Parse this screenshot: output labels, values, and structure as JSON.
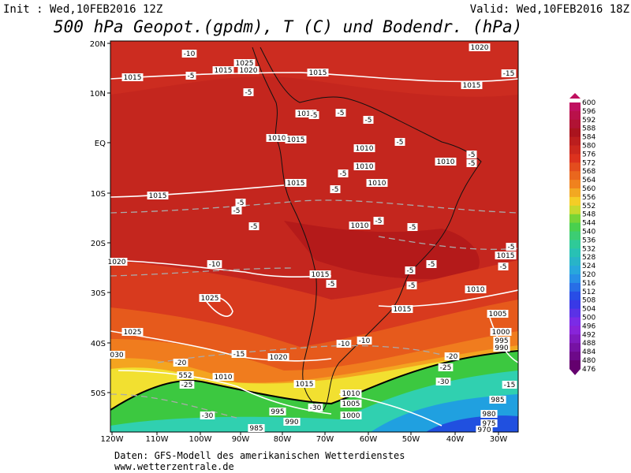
{
  "header": {
    "init": "Init : Wed,10FEB2016 12Z",
    "valid": "Valid: Wed,10FEB2016 18Z",
    "title": "500 hPa Geopot.(gpdm), T (C) und Bodendr. (hPa)"
  },
  "map": {
    "lat_labels": [
      "20N",
      "10N",
      "EQ",
      "10S",
      "20S",
      "30S",
      "40S",
      "50S"
    ],
    "lon_labels": [
      "120W",
      "110W",
      "100W",
      "90W",
      "80W",
      "70W",
      "60W",
      "50W",
      "40W",
      "30W"
    ],
    "contour_labels": [
      "-10",
      "1025",
      "1015",
      "1020",
      "-5",
      "1015",
      "1015",
      "-5",
      "1020",
      "-15",
      "1015",
      "1010",
      "-5",
      "-5",
      "-5",
      "1010",
      "1015",
      "1010",
      "-5",
      "1010",
      "1010",
      "-5",
      "-5",
      "1015",
      "-5",
      "-5",
      "1010",
      "1015",
      "-5",
      "-5",
      "-5",
      "-5",
      "1010",
      "-5",
      "-5",
      "1015",
      "-5",
      "1020",
      "-10",
      "-5",
      "-5",
      "1015",
      "-5",
      "-5",
      "1010",
      "1025",
      "1015",
      "1005",
      "1025",
      "1000",
      "995",
      "990",
      "-10",
      "-10",
      "030",
      "1020",
      "-15",
      "-20",
      "-20",
      "-25",
      "552",
      "1010",
      "-25",
      "-30",
      "1015",
      "-15",
      "1010",
      "1005",
      "985",
      "-30",
      "995",
      "1000",
      "980",
      "-30",
      "990",
      "975",
      "985",
      "970"
    ]
  },
  "colorbar": {
    "labels": [
      "600",
      "596",
      "592",
      "588",
      "584",
      "580",
      "576",
      "572",
      "568",
      "564",
      "560",
      "556",
      "552",
      "548",
      "544",
      "540",
      "536",
      "532",
      "528",
      "524",
      "520",
      "516",
      "512",
      "508",
      "504",
      "500",
      "496",
      "492",
      "488",
      "484",
      "480",
      "476"
    ]
  },
  "footer": {
    "source": "Daten: GFS-Modell des amerikanischen Wetterdienstes",
    "url": "www.wetterzentrale.de"
  }
}
